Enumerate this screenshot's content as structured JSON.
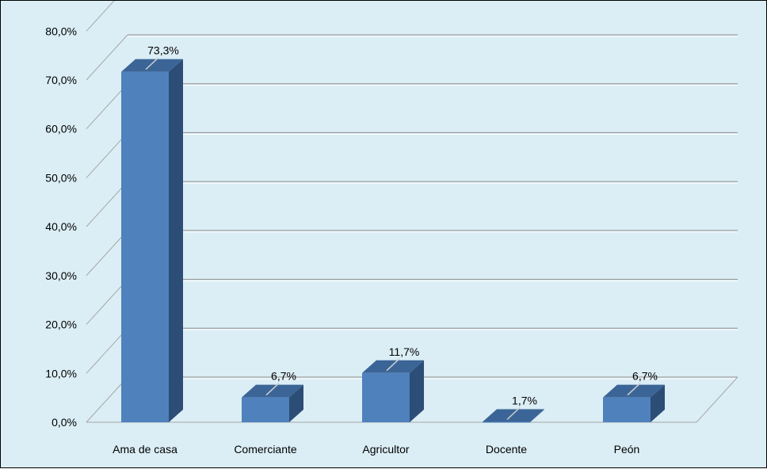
{
  "chart_data": {
    "type": "bar",
    "categories": [
      "Ama de casa",
      "Comerciante",
      "Agricultor",
      "Docente",
      "Peón"
    ],
    "values": [
      73.3,
      6.7,
      11.7,
      1.7,
      6.7
    ],
    "value_labels": [
      "73,3%",
      "6,7%",
      "11,7%",
      "1,7%",
      "6,7%"
    ],
    "y_ticks": [
      "0,0%",
      "10,0%",
      "20,0%",
      "30,0%",
      "40,0%",
      "50,0%",
      "60,0%",
      "70,0%",
      "80,0%"
    ],
    "ylim": [
      0,
      80
    ],
    "grid": true,
    "style": "3d-column",
    "colors": {
      "bar_front": "#4f81bd",
      "bar_side": "#2c4d75",
      "bar_top": "#3b6597",
      "background": "#dbeef5"
    }
  }
}
